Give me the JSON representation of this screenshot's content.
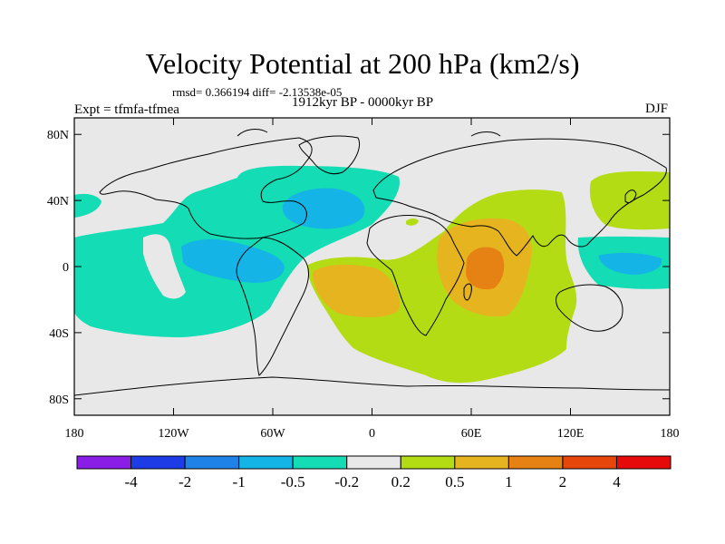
{
  "title": "Velocity Potential at 200 hPa (km2/s)",
  "stats": "rmsd= 0.366194 diff= -2.13538e-05",
  "experiment": "Expt = tfmfa-tfmea",
  "period": "1912kyr BP - 0000kyr BP",
  "season": "DJF",
  "map": {
    "lon_labels": [
      "180",
      "120W",
      "60W",
      "0",
      "60E",
      "120E",
      "180"
    ],
    "lat_labels": [
      "80N",
      "40N",
      "0",
      "40S",
      "80S"
    ]
  },
  "colorbar": {
    "colors": [
      "#8a1ee6",
      "#1e3ce6",
      "#1e82e6",
      "#14b4e6",
      "#14dcb4",
      "#e8e8e8",
      "#b4dc14",
      "#e6b41e",
      "#e68214",
      "#e6460a",
      "#e60a0a"
    ],
    "labels": [
      "-4",
      "-2",
      "-1",
      "-0.5",
      "-0.2",
      "0.2",
      "0.5",
      "1",
      "2",
      "4"
    ]
  },
  "colors": {
    "background": "#e8e8e8",
    "neg_light": "#14dcb4",
    "neg_mid": "#14b4e6",
    "pos_light": "#b4dc14",
    "pos_mid": "#e6b41e",
    "pos_strong": "#e68214"
  }
}
